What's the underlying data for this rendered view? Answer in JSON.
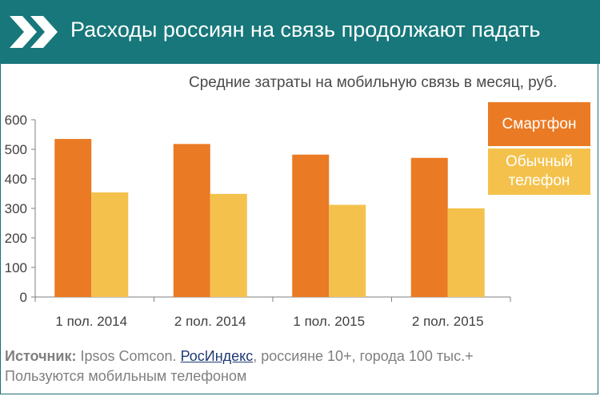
{
  "header": {
    "title": "Расходы россиян на связь продолжают падать"
  },
  "colors": {
    "header_bg": "#17777a",
    "smartphone": "#ea7a24",
    "regular_phone": "#f4c24c"
  },
  "legend": {
    "smartphone": "Смартфон",
    "regular_phone": "Обычный телефон"
  },
  "chart_data": {
    "type": "bar",
    "title": "Средние затраты на мобильную связь в месяц, руб.",
    "categories": [
      "1 пол. 2014",
      "2 пол. 2014",
      "1 пол. 2015",
      "2 пол. 2015"
    ],
    "series": [
      {
        "name": "Смартфон",
        "values": [
          535,
          518,
          482,
          471
        ],
        "color": "#ea7a24"
      },
      {
        "name": "Обычный телефон",
        "values": [
          354,
          349,
          312,
          300
        ],
        "color": "#f4c24c"
      }
    ],
    "ylim": [
      0,
      600
    ],
    "yticks": [
      0,
      100,
      200,
      300,
      400,
      500,
      600
    ],
    "grid": false,
    "legend_position": "right"
  },
  "source": {
    "label": "Источник:",
    "text_before": "Ipsos Comcon.",
    "link": "РосИндекс",
    "text_after": ", россияне 10+, города 100 тыс.+",
    "line2": "Пользуются мобильным телефоном"
  }
}
